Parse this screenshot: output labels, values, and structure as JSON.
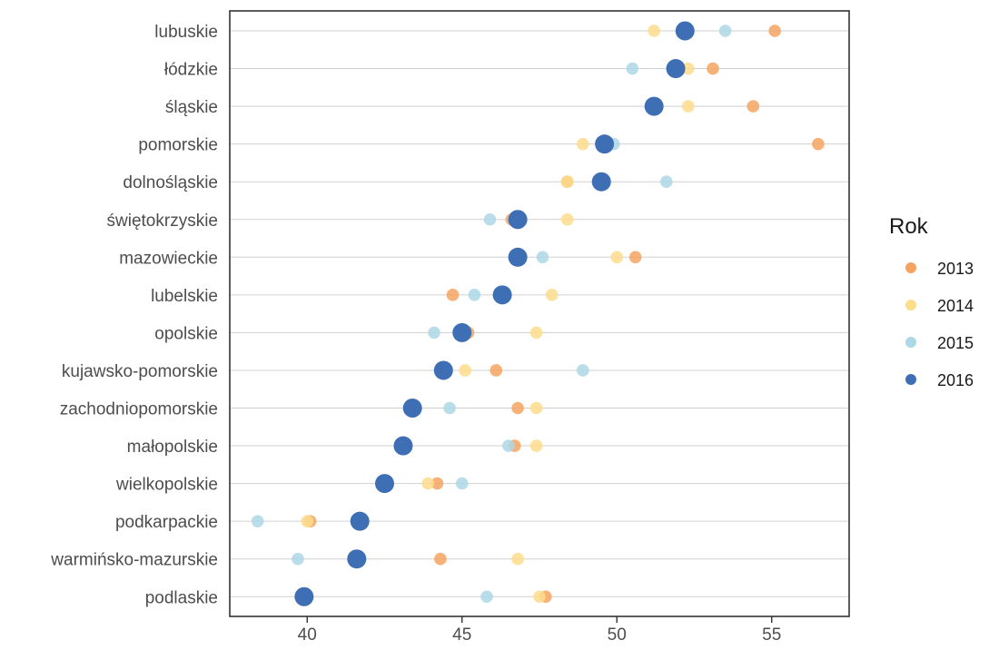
{
  "chart_data": {
    "type": "scatter",
    "legend_title": "Rok",
    "legend_position": "right",
    "grid": "horizontal",
    "xlim": [
      37.5,
      57.5
    ],
    "x_ticks": [
      40,
      45,
      50,
      55
    ],
    "categories": [
      "lubuskie",
      "łódzkie",
      "śląskie",
      "pomorskie",
      "dolnośląskie",
      "świętokrzyskie",
      "mazowieckie",
      "lubelskie",
      "opolskie",
      "kujawsko-pomorskie",
      "zachodniopomorskie",
      "małopolskie",
      "wielkopolskie",
      "podkarpackie",
      "warmińsko-mazurskie",
      "podlaskie"
    ],
    "series": [
      {
        "name": "2013",
        "color": "#f4a460",
        "highlight": false,
        "values": [
          55.1,
          53.1,
          54.4,
          56.5,
          48.4,
          46.6,
          50.6,
          44.7,
          45.2,
          46.1,
          46.8,
          46.7,
          44.2,
          40.1,
          44.3,
          47.7
        ]
      },
      {
        "name": "2014",
        "color": "#fddc8c",
        "highlight": false,
        "values": [
          51.2,
          52.3,
          52.3,
          48.9,
          48.4,
          48.4,
          50.0,
          47.9,
          47.4,
          45.1,
          47.4,
          47.4,
          43.9,
          40.0,
          46.8,
          47.5
        ]
      },
      {
        "name": "2015",
        "color": "#add8e6",
        "highlight": false,
        "values": [
          53.5,
          50.5,
          51.2,
          49.9,
          51.6,
          45.9,
          47.6,
          45.4,
          44.1,
          48.9,
          44.6,
          46.5,
          45.0,
          38.4,
          39.7,
          45.8
        ]
      },
      {
        "name": "2016",
        "color": "#3e6fb5",
        "highlight": true,
        "values": [
          52.2,
          51.9,
          51.2,
          49.6,
          49.5,
          46.8,
          46.8,
          46.3,
          45.0,
          44.4,
          43.4,
          43.1,
          42.5,
          41.7,
          41.6,
          39.9
        ]
      }
    ]
  }
}
